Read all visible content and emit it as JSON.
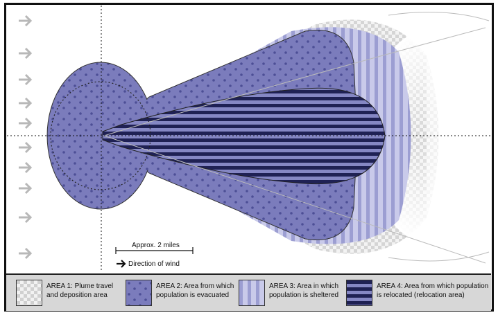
{
  "scale": {
    "label": "Approx. 2 miles"
  },
  "wind": {
    "label": "Direction of wind"
  },
  "legend": [
    {
      "line1": "AREA 1: Plume travel",
      "line2": "and deposition area",
      "pattern": "checker"
    },
    {
      "line1": "AREA 2: Area from which",
      "line2": "population is evacuated",
      "pattern": "dots"
    },
    {
      "line1": "AREA 3: Area in which",
      "line2": "population is sheltered",
      "pattern": "vstripes"
    },
    {
      "line1": "AREA 4: Area from which population",
      "line2": "is relocated (relocation area)",
      "pattern": "hstripes"
    }
  ],
  "colors": {
    "area2_fill": "#7b7cbc",
    "area2_dots": "#4d4f96",
    "area3_light": "#c9caea",
    "area3_dark": "#9c9ed2",
    "area4_dark": "#1f2154",
    "area4_light": "#8587c4",
    "arrow": "#b8b8b8",
    "legend_bg": "#d7d7d7"
  }
}
